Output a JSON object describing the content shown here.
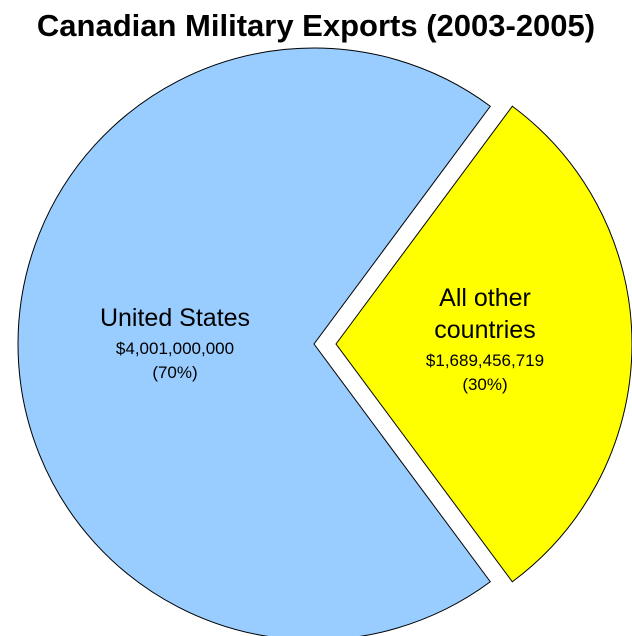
{
  "chart_data": {
    "type": "pie",
    "title": "Canadian Military Exports (2003-2005)",
    "slices": [
      {
        "name_lines": [
          "United States"
        ],
        "value": 4001000000,
        "value_label": "$4,001,000,000",
        "percent_label": "(70%)",
        "color": "#99ccff",
        "exploded": false
      },
      {
        "name_lines": [
          "All other",
          "countries"
        ],
        "value": 1689456719,
        "value_label": "$1,689,456,719",
        "percent_label": "(30%)",
        "color": "#ffff00",
        "exploded": true
      }
    ],
    "legend": "none",
    "labels": "inside"
  }
}
